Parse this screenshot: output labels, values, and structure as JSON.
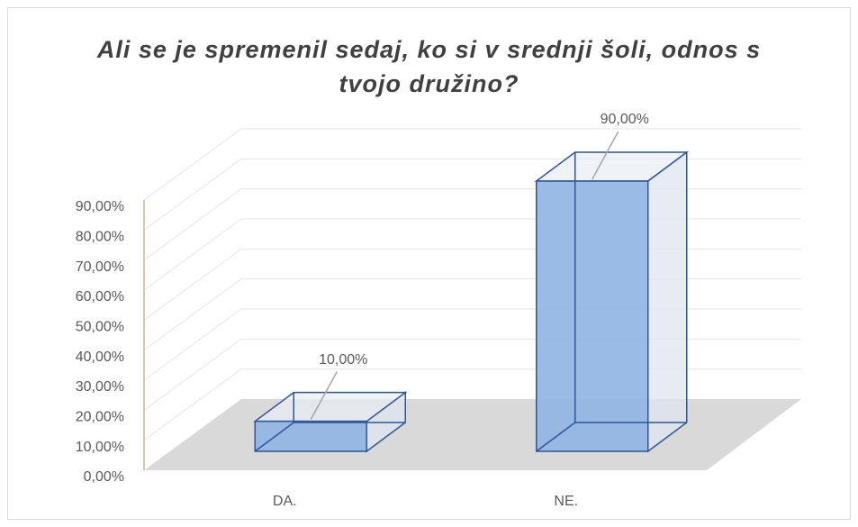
{
  "chart_data": {
    "type": "bar3d",
    "title": "Ali se je spremenil sedaj, ko si v srednji šoli, odnos s tvojo družino?",
    "categories": [
      "DA.",
      "NE."
    ],
    "values": [
      10,
      90
    ],
    "value_labels": [
      "10,00%",
      "90,00%"
    ],
    "color": "#8eb4e3",
    "ylim": [
      0,
      90
    ],
    "yticks": [
      {
        "value": 0,
        "label": "0,00%"
      },
      {
        "value": 10,
        "label": "10,00%"
      },
      {
        "value": 20,
        "label": "20,00%"
      },
      {
        "value": 30,
        "label": "30,00%"
      },
      {
        "value": 40,
        "label": "40,00%"
      },
      {
        "value": 50,
        "label": "50,00%"
      },
      {
        "value": 60,
        "label": "60,00%"
      },
      {
        "value": 70,
        "label": "70,00%"
      },
      {
        "value": 80,
        "label": "80,00%"
      },
      {
        "value": 90,
        "label": "90,00%"
      }
    ],
    "grid": true
  }
}
